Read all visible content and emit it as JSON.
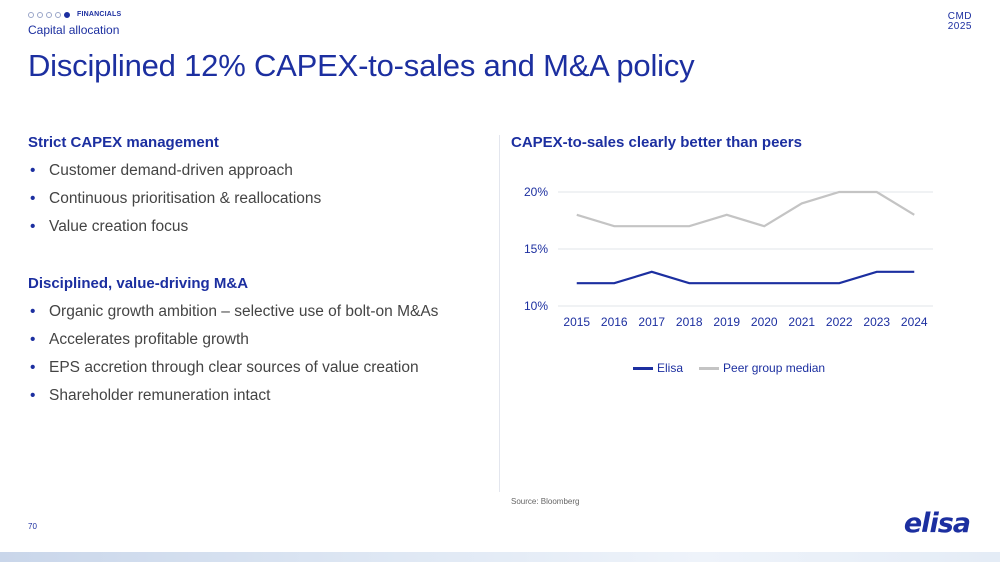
{
  "header": {
    "section_label": "FINANCIALS",
    "progress_total": 5,
    "progress_active": 5,
    "subtitle": "Capital allocation",
    "event_line1": "CMD",
    "event_line2": "2025"
  },
  "title": "Disciplined 12% CAPEX-to-sales and M&A policy",
  "left": {
    "section1": {
      "heading": "Strict CAPEX management",
      "bullets": [
        "Customer demand-driven approach",
        "Continuous prioritisation & reallocations",
        "Value creation focus"
      ]
    },
    "section2": {
      "heading": "Disciplined, value-driving M&A",
      "bullets": [
        "Organic growth ambition – selective use of bolt-on M&As",
        "Accelerates profitable growth",
        "EPS accretion through clear sources of value creation",
        "Shareholder remuneration intact"
      ]
    }
  },
  "chart_data": {
    "type": "line",
    "title": "CAPEX-to-sales clearly better than peers",
    "categories": [
      "2015",
      "2016",
      "2017",
      "2018",
      "2019",
      "2020",
      "2021",
      "2022",
      "2023",
      "2024"
    ],
    "series": [
      {
        "name": "Elisa",
        "color": "#1c2fa0",
        "values": [
          12,
          12,
          13,
          12,
          12,
          12,
          12,
          12,
          13,
          13
        ]
      },
      {
        "name": "Peer group median",
        "color": "#c4c4c4",
        "values": [
          18,
          17,
          17,
          17,
          18,
          17,
          19,
          20,
          20,
          18
        ]
      }
    ],
    "y_ticks": [
      10,
      15,
      20
    ],
    "y_tick_labels": [
      "10%",
      "15%",
      "20%"
    ],
    "ylim": [
      10,
      20
    ],
    "legend_position": "bottom-center",
    "grid": true
  },
  "source": "Source: Bloomberg",
  "page_number": "70",
  "logo_text": "elisa"
}
